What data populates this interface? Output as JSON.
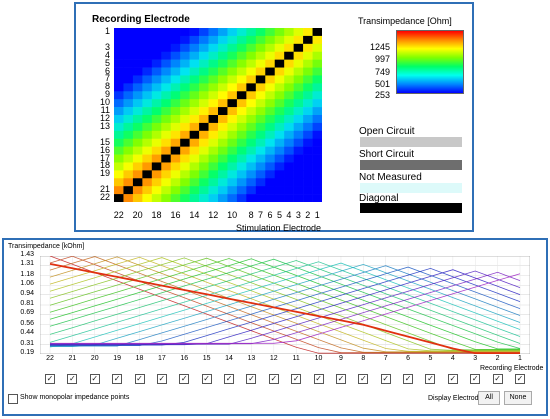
{
  "heatmap": {
    "title": "Recording Electrode",
    "xlabel": "Stimulation Electrode",
    "y_ticks": [
      "1",
      "3",
      "4",
      "5",
      "6",
      "7",
      "8",
      "9",
      "10",
      "11",
      "12",
      "13",
      "15",
      "16",
      "17",
      "18",
      "19",
      "21",
      "22"
    ],
    "x_ticks": [
      "22",
      "20",
      "18",
      "16",
      "14",
      "12",
      "10",
      "8",
      "7",
      "6",
      "5",
      "4",
      "3",
      "2",
      "1"
    ]
  },
  "colorbar": {
    "title": "Transimpedance [Ohm]",
    "ticks": [
      "1245",
      "997",
      "749",
      "501",
      "253"
    ]
  },
  "legend": {
    "open_circuit": "Open Circuit",
    "short_circuit": "Short Circuit",
    "not_measured": "Not Measured",
    "diagonal": "Diagonal",
    "colors": {
      "open_circuit": "#c8c8c8",
      "short_circuit": "#6e6e6e",
      "not_measured": "#ddfafa",
      "diagonal": "#000000"
    }
  },
  "chart_data": [
    {
      "type": "heatmap",
      "title": "Recording Electrode",
      "xlabel": "Stimulation Electrode",
      "ylabel": "Recording Electrode",
      "x_order": [
        22,
        21,
        20,
        19,
        18,
        17,
        16,
        15,
        14,
        13,
        12,
        11,
        10,
        9,
        8,
        7,
        6,
        5,
        4,
        3,
        2,
        1
      ],
      "y_order": [
        1,
        2,
        3,
        4,
        5,
        6,
        7,
        8,
        9,
        10,
        11,
        12,
        13,
        14,
        15,
        16,
        17,
        18,
        19,
        20,
        21,
        22
      ],
      "value_range": [
        253,
        1245
      ],
      "diagonal": "black"
    },
    {
      "type": "line",
      "ylabel": "Transimpedance [kOhm]",
      "xlabel": "Recording Electrode",
      "y_ticks": [
        "1.43",
        "1.31",
        "1.18",
        "1.06",
        "0.94",
        "0.81",
        "0.69",
        "0.56",
        "0.44",
        "0.31",
        "0.19"
      ],
      "ylim": [
        0.19,
        1.43
      ],
      "x_categories": [
        "22",
        "21",
        "20",
        "19",
        "18",
        "17",
        "16",
        "15",
        "14",
        "13",
        "12",
        "11",
        "10",
        "9",
        "8",
        "7",
        "6",
        "5",
        "4",
        "3",
        "2",
        "1"
      ],
      "series_count": 22
    }
  ],
  "bottom": {
    "show_points_label": "Show monopolar impedance points",
    "display_label": "Display Electrodes",
    "all_label": "All",
    "none_label": "None"
  }
}
